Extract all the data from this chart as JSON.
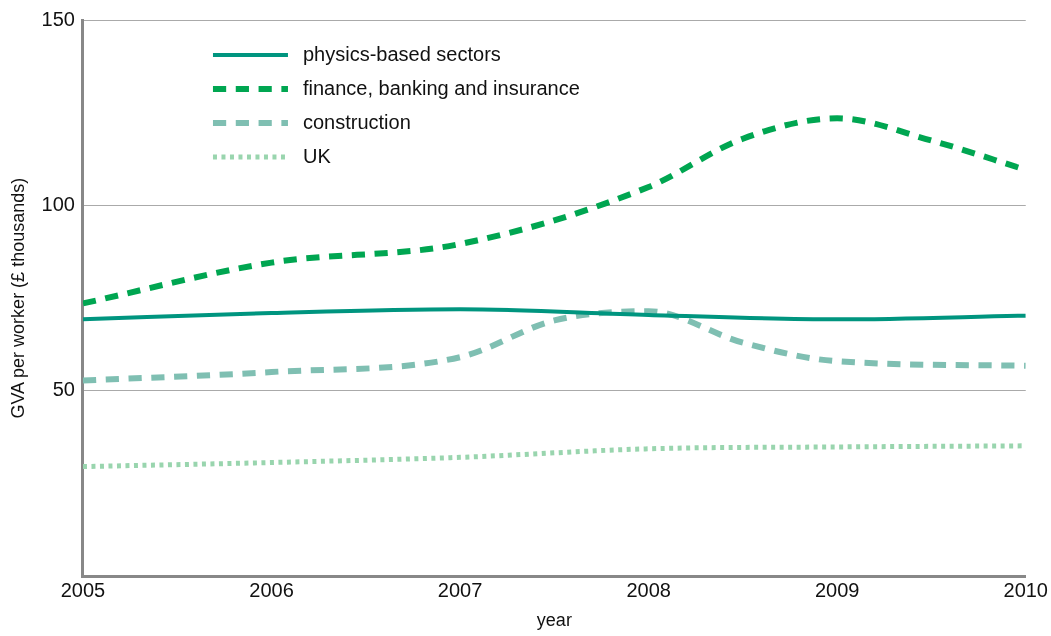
{
  "chart_data": {
    "type": "line",
    "xlabel": "year",
    "ylabel": "GVA per worker (£ thousands)",
    "xlim": [
      2005,
      2010
    ],
    "xticks": [
      2005,
      2006,
      2007,
      2008,
      2009,
      2010
    ],
    "ylim": [
      0,
      150
    ],
    "yticks": [
      50,
      100,
      150
    ],
    "grid": "y",
    "legend": "top left",
    "marker": "none",
    "series": [
      {
        "name": "physics-based sectors",
        "color": "#00957f",
        "line_style": "solid",
        "x": [
          2005,
          2006,
          2007,
          2008,
          2009,
          2010
        ],
        "values": [
          69.3,
          71,
          72,
          70.5,
          69.3,
          70.3
        ]
      },
      {
        "name": "finance, banking and insurance",
        "color": "#00a651",
        "line_style": "dashed",
        "x": [
          2005,
          2006,
          2007,
          2008,
          2008.5,
          2009,
          2009.5,
          2010
        ],
        "values": [
          73.6,
          84.6,
          89.6,
          105,
          118,
          123.5,
          117.5,
          109.6
        ]
      },
      {
        "name": "construction",
        "color": "#7fbfb2",
        "line_style": "dashed",
        "x": [
          2005,
          2006,
          2007,
          2007.5,
          2008,
          2008.5,
          2009,
          2010
        ],
        "values": [
          52.8,
          55.1,
          59.1,
          69,
          71.5,
          63,
          58,
          56.8
        ]
      },
      {
        "name": "UK",
        "color": "#99d5ae",
        "line_style": "dotted",
        "x": [
          2005,
          2006,
          2007,
          2008,
          2009,
          2010
        ],
        "values": [
          29.6,
          30.7,
          32.1,
          34.4,
          34.9,
          35.2
        ]
      }
    ]
  }
}
